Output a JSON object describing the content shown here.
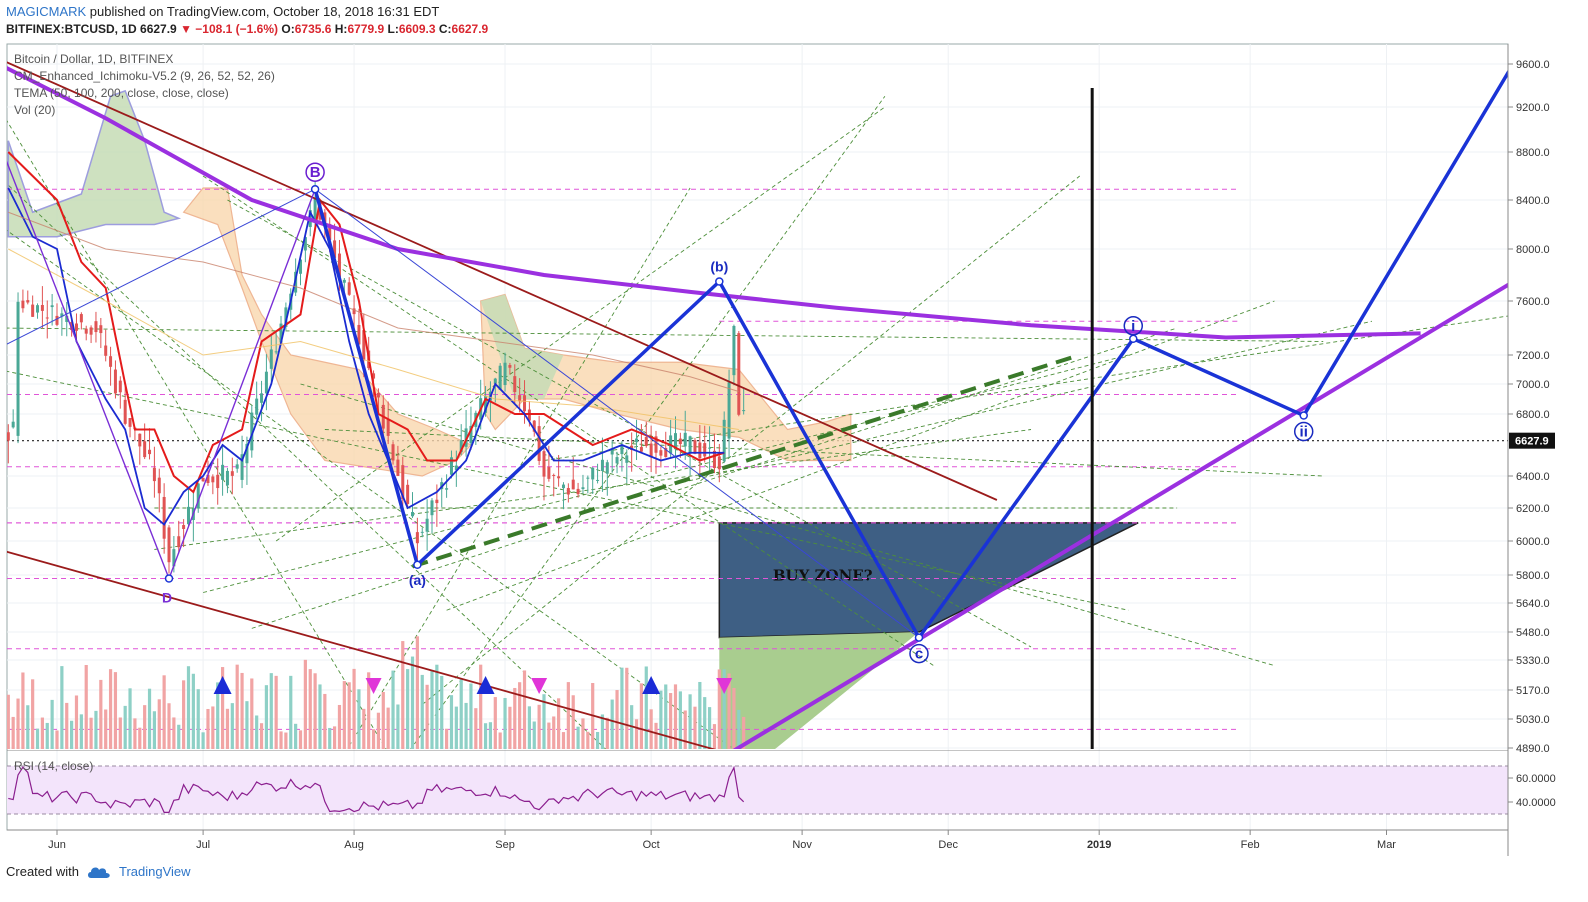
{
  "header": {
    "author": "MAGICMARK",
    "published": "published on TradingView.com, October 18, 2018 16:31 EDT"
  },
  "symbol_line": {
    "symbol": "BITFINEX:BTCUSD, 1D",
    "last": "6627.9",
    "change": "−108.1 (−1.6%)",
    "o_label": "O:",
    "o": "6735.6",
    "h_label": "H:",
    "h": "6779.9",
    "l_label": "L:",
    "l": "6609.3",
    "c_label": "C:",
    "c": "6627.9"
  },
  "legend": {
    "line1": "Bitcoin / Dollar, 1D, BITFINEX",
    "line2": "CM_Enhanced_Ichimoku-V5.2 (9, 26, 52, 52, 26)",
    "line3": "TEMA (50, 100, 200, close, close, close)",
    "line4": "Vol (20)"
  },
  "rsi_label": "RSI (14, close)",
  "footer": {
    "created": "Created with",
    "logo": "TradingView"
  },
  "colors": {
    "up": "#4aa896",
    "down": "#e05353",
    "magenta": "#cc3fd6",
    "purple": "#9b30e0",
    "blue": "#1a33d6",
    "darkred": "#9b1b1b",
    "green_dash": "#3a7a2a",
    "buy_zone": "#3e5f84",
    "green_zone": "#a9cd8f",
    "rsi_fill": "#f3e4fb"
  },
  "chart_data": [
    {
      "type": "candlestick",
      "title": "Bitcoin / Dollar, 1D, BITFINEX",
      "y_ticks": [
        "9600.0",
        "9200.0",
        "8800.0",
        "8400.0",
        "8000.0",
        "7600.0",
        "7200.0",
        "7000.0",
        "6800.0",
        "6400.0",
        "6200.0",
        "6000.0",
        "5800.0",
        "5640.0",
        "5480.0",
        "5330.0",
        "5170.0",
        "5030.0",
        "4890.0"
      ],
      "x_ticks": [
        "Jun",
        "Jul",
        "Aug",
        "Sep",
        "Oct",
        "Nov",
        "Dec",
        "2019",
        "Feb",
        "Mar"
      ],
      "last_price": "6627.9",
      "wave_labels": [
        "B",
        "(b)",
        "(a)",
        "D",
        "c",
        "i",
        "ii"
      ],
      "annotations": [
        "BUY ZONE?"
      ],
      "key_points": [
        {
          "label": "D",
          "date": "2018-06-24",
          "price": 5780
        },
        {
          "label": "B",
          "date": "2018-07-24",
          "price": 8490
        },
        {
          "label": "(a)",
          "date": "2018-08-14",
          "price": 5860
        },
        {
          "label": "(b)",
          "date": "2018-10-15",
          "price": 7750
        },
        {
          "label": "c",
          "date": "2018-11-25",
          "price": 5450
        },
        {
          "label": "i",
          "date": "2019-01-08",
          "price": 7320
        },
        {
          "label": "ii",
          "date": "2019-02-12",
          "price": 6790
        }
      ]
    },
    {
      "type": "line",
      "title": "RSI (14, close)",
      "y_ticks": [
        "60.0000",
        "40.0000"
      ],
      "levels": [
        70,
        30
      ]
    }
  ]
}
